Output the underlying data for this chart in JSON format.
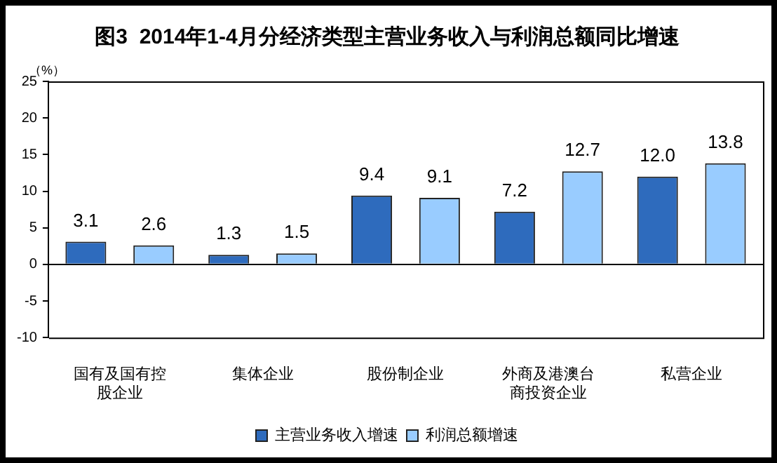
{
  "chart_data": {
    "type": "bar",
    "title": "图3  2014年1-4月分经济类型主营业务收入与利润总额同比增速",
    "ylabel": "（%）",
    "categories": [
      "国有及国有控股企业",
      "集体企业",
      "股份制企业",
      "外商及港澳台商投资企业",
      "私营企业"
    ],
    "series": [
      {
        "name": "主营业务收入增速",
        "color": "#2e6bbd",
        "values": [
          3.1,
          1.3,
          9.4,
          7.2,
          12.0
        ],
        "value_labels": [
          "3.1",
          "1.3",
          "9.4",
          "7.2",
          "12.0"
        ]
      },
      {
        "name": "利润总额增速",
        "color": "#99ccff",
        "values": [
          2.6,
          1.5,
          9.1,
          12.7,
          13.8
        ],
        "value_labels": [
          "2.6",
          "1.5",
          "9.1",
          "12.7",
          "13.8"
        ]
      }
    ],
    "ylim": [
      -10,
      25
    ],
    "yticks": [
      -10,
      -5,
      0,
      5,
      10,
      15,
      20,
      25
    ],
    "legend": "bottom"
  }
}
